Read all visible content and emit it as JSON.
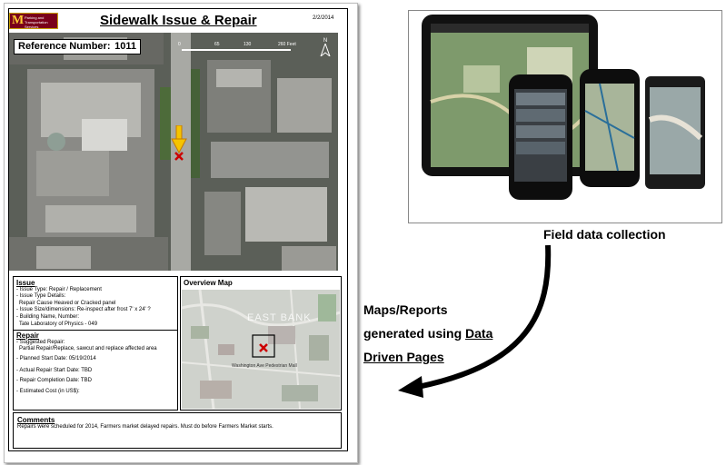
{
  "report": {
    "logo_letter": "M",
    "logo_text": "Parking and Transportation Services",
    "title": "Sidewalk Issue & Repair",
    "date": "2/2/2014",
    "reference_label": "Reference Number:",
    "reference_value": "1011",
    "scale_ticks": [
      "0",
      "65",
      "130",
      "260 Feet"
    ],
    "north_label": "N",
    "issue": {
      "heading": "Issue",
      "lines": [
        "- Issue Type: Repair / Replacement",
        "- Issue Type Details:",
        "  Repair Cause Heaved or Cracked panel",
        "- Issue Size/dimensions: Re-inspect after frost 7' x 24' ?",
        "- Building Name, Number:",
        "  Tate Laboratory of Physics - 049"
      ]
    },
    "repair": {
      "heading": "Repair",
      "lines": [
        "- Suggested Repair:",
        "  Partial Repair/Replace, sawcut and replace affected area",
        "- Planned Start Date: 05/19/2014",
        "- Actual Repair Start Date: TBD",
        "- Repair Completion Date: TBD",
        "- Estimated Cost (in US$):"
      ]
    },
    "overview": {
      "title": "Overview Map",
      "area_label": "EAST BANK",
      "street_label": "Washington Ave Pedestrian Mall"
    },
    "comments": {
      "heading": "Comments",
      "text": "Repairs were scheduled for 2014, Farmers market delayed repairs. Must do before Farmers Market starts."
    }
  },
  "captions": {
    "field": "Field data collection",
    "maps_line1": "Maps/Reports",
    "maps_line2_a": "generated using ",
    "maps_line2_b": "Data",
    "maps_line3": "Driven Pages"
  },
  "colors": {
    "logo_maroon": "#7a0019",
    "logo_gold": "#ffcc33",
    "arrow_yellow": "#f5c400",
    "marker_red": "#cc0000"
  }
}
